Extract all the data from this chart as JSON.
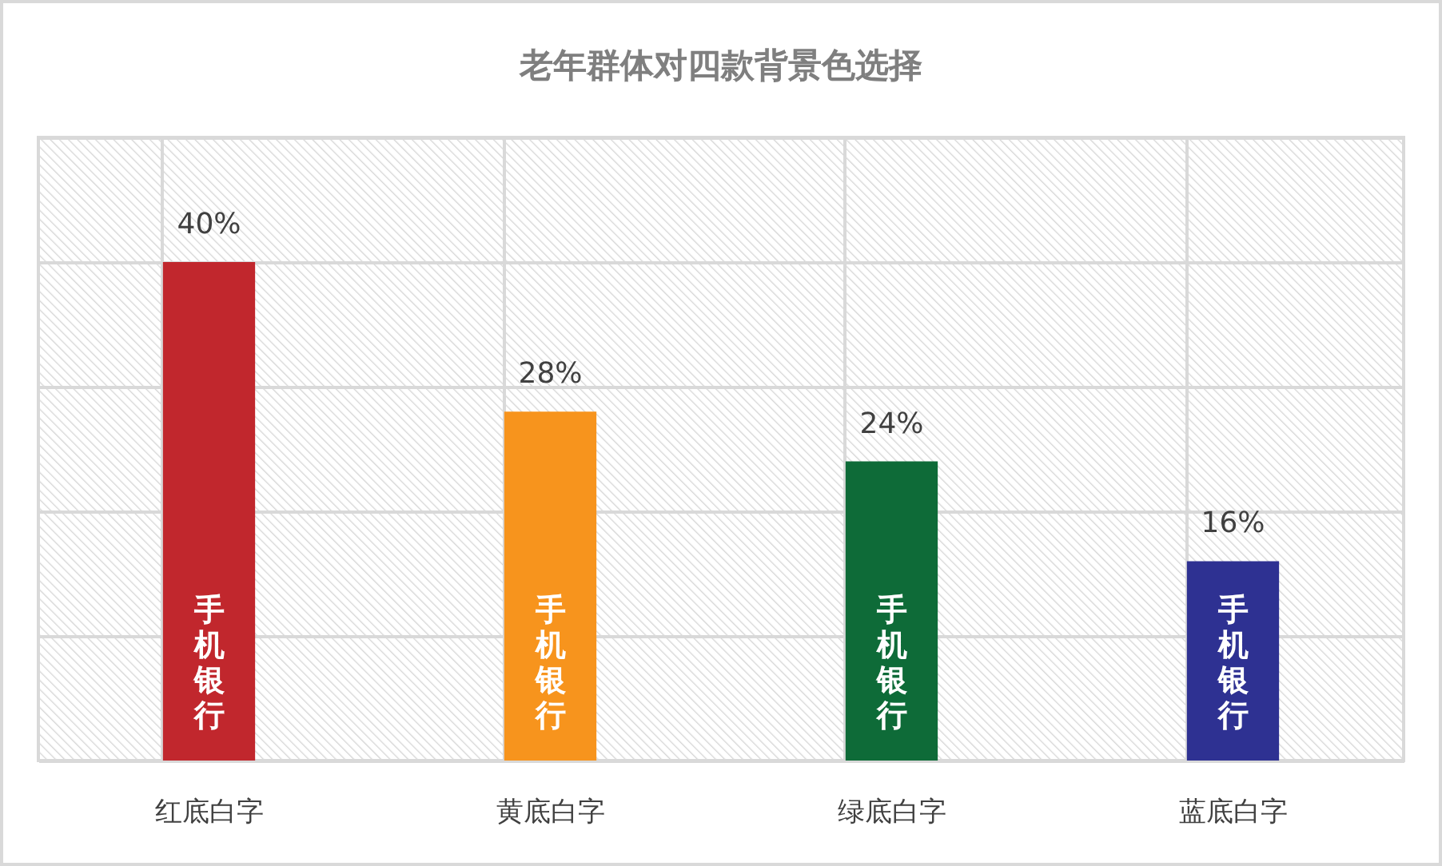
{
  "chart_data": {
    "type": "bar",
    "title": "老年群体对四款背景色选择",
    "categories": [
      "红底白字",
      "黄底白字",
      "绿底白字",
      "蓝底白字"
    ],
    "values": [
      40,
      28,
      24,
      16
    ],
    "colors": [
      "#c1272d",
      "#f7941d",
      "#0e6b38",
      "#2e3192"
    ],
    "value_labels": [
      "40%",
      "28%",
      "24%",
      "16%"
    ],
    "ylim": [
      0,
      50
    ],
    "yticks": [
      {
        "value": 0,
        "label": null
      },
      {
        "value": 10,
        "label": null
      },
      {
        "value": 20,
        "label": null
      },
      {
        "value": 30,
        "label": null
      },
      {
        "value": 40,
        "label": null
      },
      {
        "value": 50,
        "label": null
      }
    ],
    "tick_labels": "x",
    "grid": true,
    "annotations": [
      "手机银行",
      "手机银行",
      "手机银行",
      "手机银行"
    ]
  }
}
